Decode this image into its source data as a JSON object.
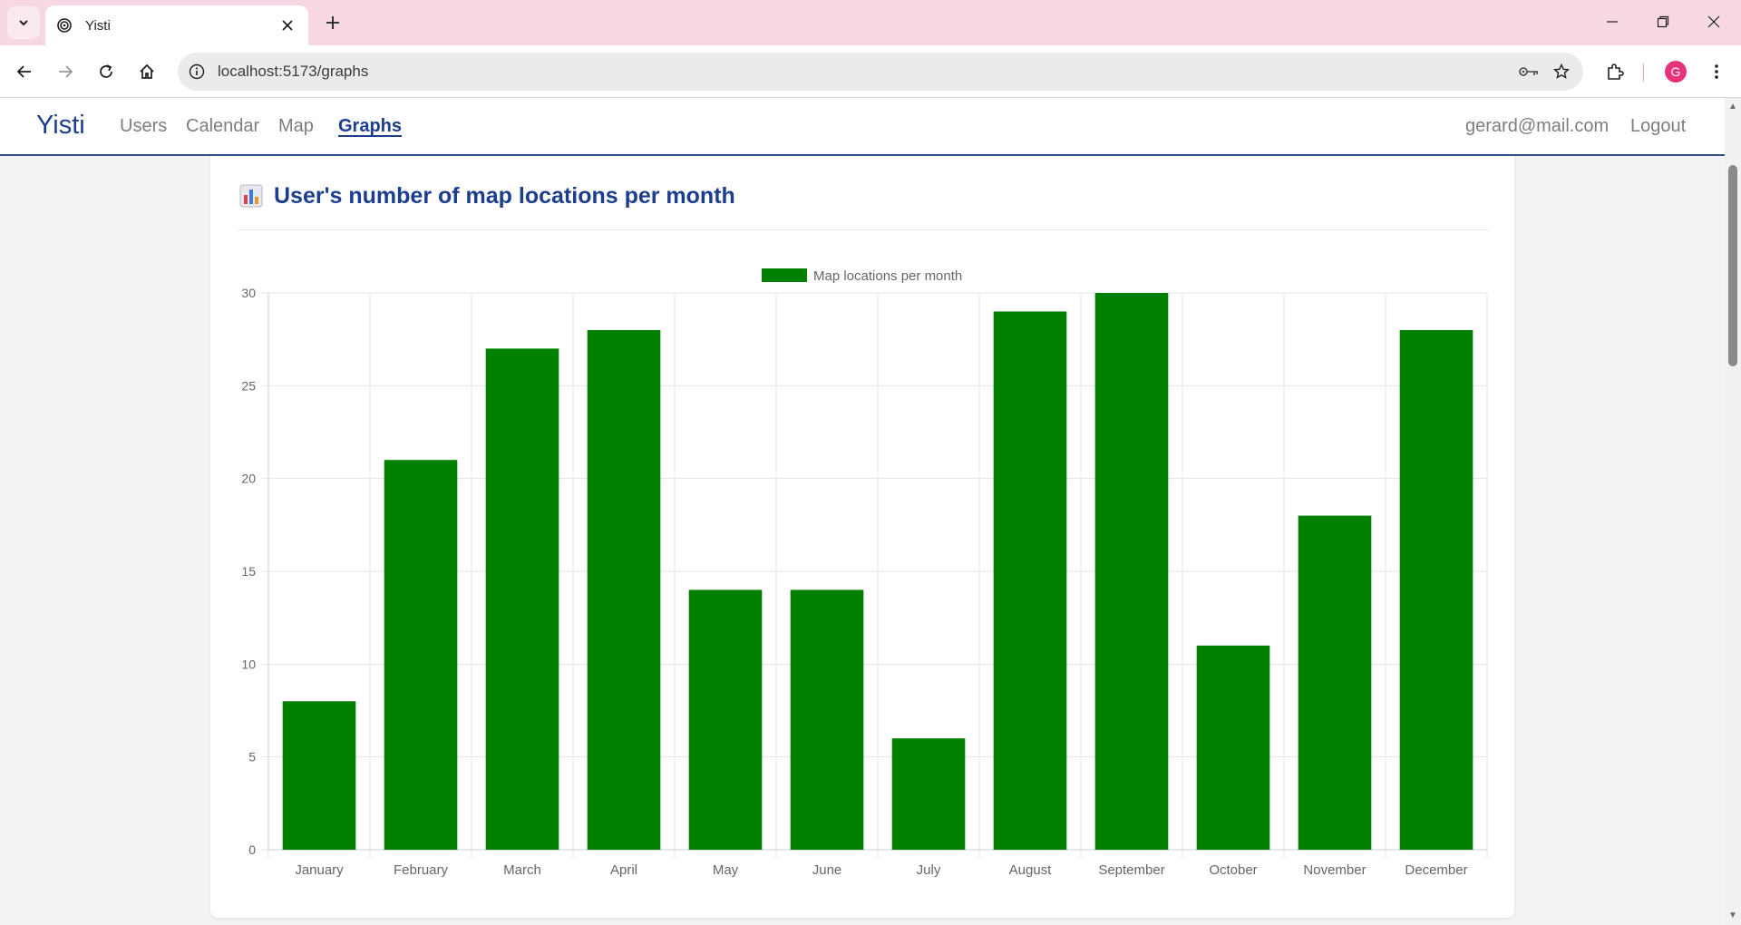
{
  "browser": {
    "tab_title": "Yisti",
    "url": "localhost:5173/graphs",
    "profile_initial": "G"
  },
  "app": {
    "brand": "Yisti",
    "nav": [
      {
        "label": "Users",
        "active": false
      },
      {
        "label": "Calendar",
        "active": false
      },
      {
        "label": "Map",
        "active": false
      },
      {
        "label": "Graphs",
        "active": true
      }
    ],
    "user_email": "gerard@mail.com",
    "logout_label": "Logout"
  },
  "card": {
    "title": "User's number of map locations per month",
    "title_icon": "bar-chart-icon"
  },
  "colors": {
    "accent": "#1d3d8f",
    "bar": "#008000",
    "tab_strip": "#f6d7e3"
  },
  "chart_data": {
    "type": "bar",
    "categories": [
      "January",
      "February",
      "March",
      "April",
      "May",
      "June",
      "July",
      "August",
      "September",
      "October",
      "November",
      "December"
    ],
    "series": [
      {
        "name": "Map locations per month",
        "values": [
          8,
          21,
          27,
          28,
          14,
          14,
          6,
          29,
          30,
          11,
          18,
          28
        ]
      }
    ],
    "ylim": [
      0,
      30
    ],
    "yticks": [
      0,
      5,
      10,
      15,
      20,
      25,
      30
    ],
    "grid": true,
    "legend": "top-center"
  }
}
